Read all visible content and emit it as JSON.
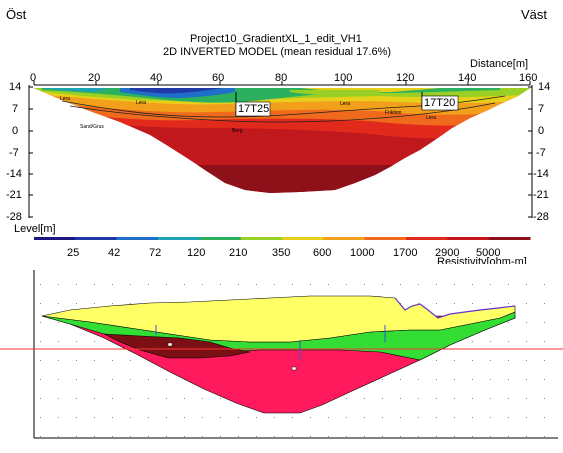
{
  "header": {
    "left_label": "Öst",
    "right_label": "Väst",
    "title_line1": "Project10_GradientXL_1_edit_VH1",
    "title_line2": "2D INVERTED MODEL (mean residual 17.6%)",
    "distance_label": "Distance[m]"
  },
  "top_axis": {
    "ticks": [
      "0",
      "20",
      "40",
      "60",
      "80",
      "100",
      "120",
      "140",
      "160"
    ]
  },
  "level_axis": {
    "ticks": [
      "14",
      "7",
      "0",
      "-7",
      "-14",
      "-21",
      "-28"
    ],
    "label": "Level[m]"
  },
  "markers": [
    {
      "id": "17T25"
    },
    {
      "id": "17T20"
    }
  ],
  "inline_labels": [
    "Lera",
    "Lera",
    "Friktion",
    "Lera",
    "Lera",
    "Sand/Grus",
    "Berg"
  ],
  "colorbar": {
    "tick_labels": [
      "25",
      "42",
      "72",
      "120",
      "210",
      "350",
      "600",
      "1000",
      "1700",
      "2900",
      "5000"
    ],
    "unit_label": "Resistivity[ohm-m]",
    "colors": [
      "#1c1a80",
      "#1f3aa8",
      "#1f6ec8",
      "#1fa2b4",
      "#2bb060",
      "#9ad025",
      "#e6d01a",
      "#f2a01c",
      "#ef6a1c",
      "#e22a1c",
      "#c0181c",
      "#8e1018"
    ]
  },
  "lower_panel": {
    "colors": {
      "top_layer": "#ffff66",
      "green_layer": "#33dd33",
      "bedrock": "#ff1a5e",
      "dark_pocket": "#7a0f14",
      "red_line": "#ff3333"
    }
  }
}
